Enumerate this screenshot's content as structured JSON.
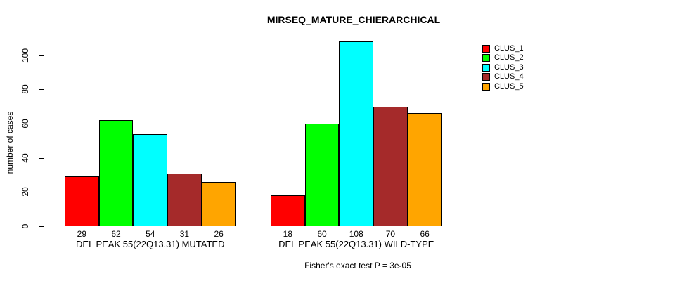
{
  "title": "MIRSEQ_MATURE_CHIERARCHICAL",
  "chart_data": {
    "type": "bar",
    "title": "MIRSEQ_MATURE_CHIERARCHICAL",
    "ylabel": "number of cases",
    "xlabel": "",
    "yticks": [
      0,
      20,
      40,
      60,
      80,
      100
    ],
    "ylim": [
      0,
      108
    ],
    "grid": false,
    "legend_position": "top-right",
    "series_labels": [
      "CLUS_1",
      "CLUS_2",
      "CLUS_3",
      "CLUS_4",
      "CLUS_5"
    ],
    "series_colors": [
      "#FF0000",
      "#00FF00",
      "#00FFFF",
      "#A52A2A",
      "#FFA500"
    ],
    "groups": [
      {
        "label": "DEL PEAK 55(22Q13.31) MUTATED",
        "values": [
          29,
          62,
          54,
          31,
          26
        ]
      },
      {
        "label": "DEL PEAK 55(22Q13.31) WILD-TYPE",
        "values": [
          18,
          60,
          108,
          70,
          66
        ]
      }
    ],
    "bar_value_labels_shown": true,
    "annotation": "Fisher's exact test P = 3e-05"
  }
}
